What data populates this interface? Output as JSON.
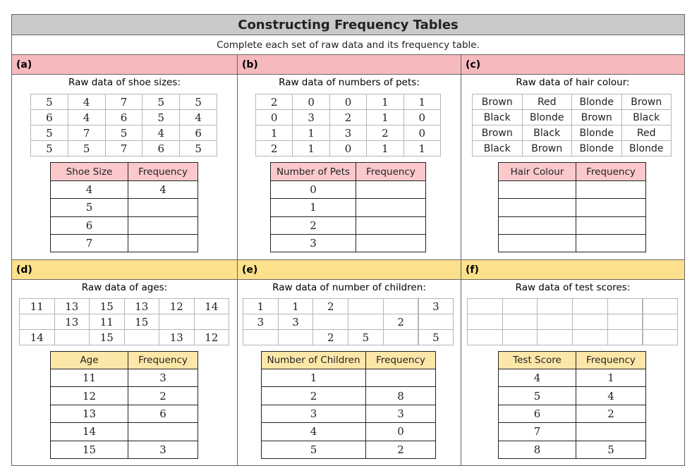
{
  "header": {
    "title": "Constructing Frequency Tables",
    "subtitle": "Complete each set of raw data and its frequency table."
  },
  "panels": [
    {
      "label": "(a)",
      "raw_title": "Raw data of shoe sizes:",
      "raw_data": [
        [
          5,
          4,
          7,
          5,
          5
        ],
        [
          6,
          4,
          6,
          5,
          4
        ],
        [
          5,
          7,
          5,
          4,
          6
        ],
        [
          5,
          5,
          7,
          6,
          5
        ]
      ],
      "table": {
        "headers": [
          "Shoe Size",
          "Frequency"
        ],
        "rows": [
          [
            4,
            4
          ],
          [
            5,
            null
          ],
          [
            6,
            null
          ],
          [
            7,
            null
          ]
        ]
      }
    },
    {
      "label": "(b)",
      "raw_title": "Raw data of numbers of pets:",
      "raw_data": [
        [
          2,
          0,
          0,
          1,
          1
        ],
        [
          0,
          3,
          2,
          1,
          0
        ],
        [
          1,
          1,
          3,
          2,
          0
        ],
        [
          2,
          1,
          0,
          1,
          1
        ]
      ],
      "table": {
        "headers": [
          "Number of Pets",
          "Frequency"
        ],
        "rows": [
          [
            0,
            null
          ],
          [
            1,
            null
          ],
          [
            2,
            null
          ],
          [
            3,
            null
          ]
        ]
      }
    },
    {
      "label": "(c)",
      "raw_title": "Raw data of hair colour:",
      "raw_data": [
        [
          "Brown",
          "Red",
          "Blonde",
          "Brown"
        ],
        [
          "Black",
          "Blonde",
          "Brown",
          "Black"
        ],
        [
          "Brown",
          "Black",
          "Blonde",
          "Red"
        ],
        [
          "Black",
          "Brown",
          "Blonde",
          "Blonde"
        ]
      ],
      "table": {
        "headers": [
          "Hair Colour",
          "Frequency"
        ],
        "rows": [
          [
            null,
            null
          ],
          [
            null,
            null
          ],
          [
            null,
            null
          ],
          [
            null,
            null
          ]
        ]
      }
    },
    {
      "label": "(d)",
      "raw_title": "Raw data of ages:",
      "raw_data": [
        [
          11,
          13,
          15,
          13,
          12,
          14
        ],
        [
          null,
          13,
          11,
          15,
          null,
          null
        ],
        [
          14,
          null,
          15,
          null,
          13,
          12
        ]
      ],
      "table": {
        "headers": [
          "Age",
          "Frequency"
        ],
        "rows": [
          [
            11,
            3
          ],
          [
            12,
            2
          ],
          [
            13,
            6
          ],
          [
            14,
            null
          ],
          [
            15,
            3
          ]
        ]
      }
    },
    {
      "label": "(e)",
      "raw_title": "Raw data of number of children:",
      "raw_data": [
        [
          1,
          1,
          2,
          null,
          null,
          3
        ],
        [
          3,
          3,
          null,
          null,
          2,
          null
        ],
        [
          null,
          null,
          2,
          5,
          null,
          5
        ]
      ],
      "table": {
        "headers": [
          "Number of Children",
          "Frequency"
        ],
        "rows": [
          [
            1,
            null
          ],
          [
            2,
            8
          ],
          [
            3,
            3
          ],
          [
            4,
            0
          ],
          [
            5,
            2
          ]
        ]
      }
    },
    {
      "label": "(f)",
      "raw_title": "Raw data of test scores:",
      "raw_data": [
        [
          null,
          null,
          null,
          null,
          null,
          null
        ],
        [
          null,
          null,
          null,
          null,
          null,
          null
        ],
        [
          null,
          null,
          null,
          null,
          null,
          null
        ]
      ],
      "table": {
        "headers": [
          "Test Score",
          "Frequency"
        ],
        "rows": [
          [
            4,
            1
          ],
          [
            5,
            4
          ],
          [
            6,
            2
          ],
          [
            7,
            null
          ],
          [
            8,
            5
          ]
        ]
      }
    }
  ]
}
